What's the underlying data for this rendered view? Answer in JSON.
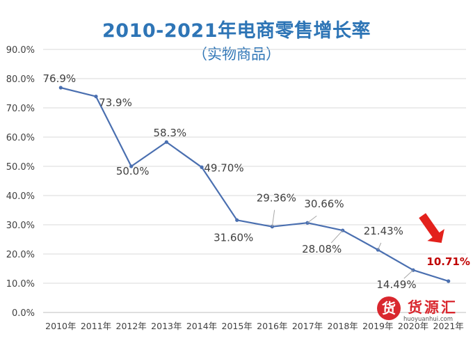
{
  "chart_data": {
    "type": "line",
    "title": "2010-2021年电商零售增长率",
    "subtitle": "（实物商品）",
    "categories": [
      "2010年",
      "2011年",
      "2012年",
      "2013年",
      "2014年",
      "2015年",
      "2016年",
      "2017年",
      "2018年",
      "2019年",
      "2020年",
      "2021年"
    ],
    "values": [
      76.9,
      73.9,
      50.0,
      58.3,
      49.7,
      31.6,
      29.36,
      30.66,
      28.08,
      21.43,
      14.49,
      10.71
    ],
    "data_labels": [
      "76.9%",
      "73.9%",
      "50.0%",
      "58.3%",
      "49.70%",
      "31.60%",
      "29.36%",
      "30.66%",
      "28.08%",
      "21.43%",
      "14.49%",
      "10.71%"
    ],
    "y_ticks": [
      "0.0%",
      "10.0%",
      "20.0%",
      "30.0%",
      "40.0%",
      "50.0%",
      "60.0%",
      "70.0%",
      "80.0%",
      "90.0%"
    ],
    "ylim": [
      0,
      90
    ],
    "grid": true,
    "legend": "none",
    "highlight_point": 11,
    "colors": {
      "line": "#4a6fb0",
      "title": "#2e75b6",
      "highlight": "#c00000",
      "arrow": "#e3211c",
      "grid": "#d9d9d9"
    }
  },
  "watermark": {
    "logo_char": "货",
    "name": "货源汇",
    "url": "huoyuanhui.com"
  }
}
